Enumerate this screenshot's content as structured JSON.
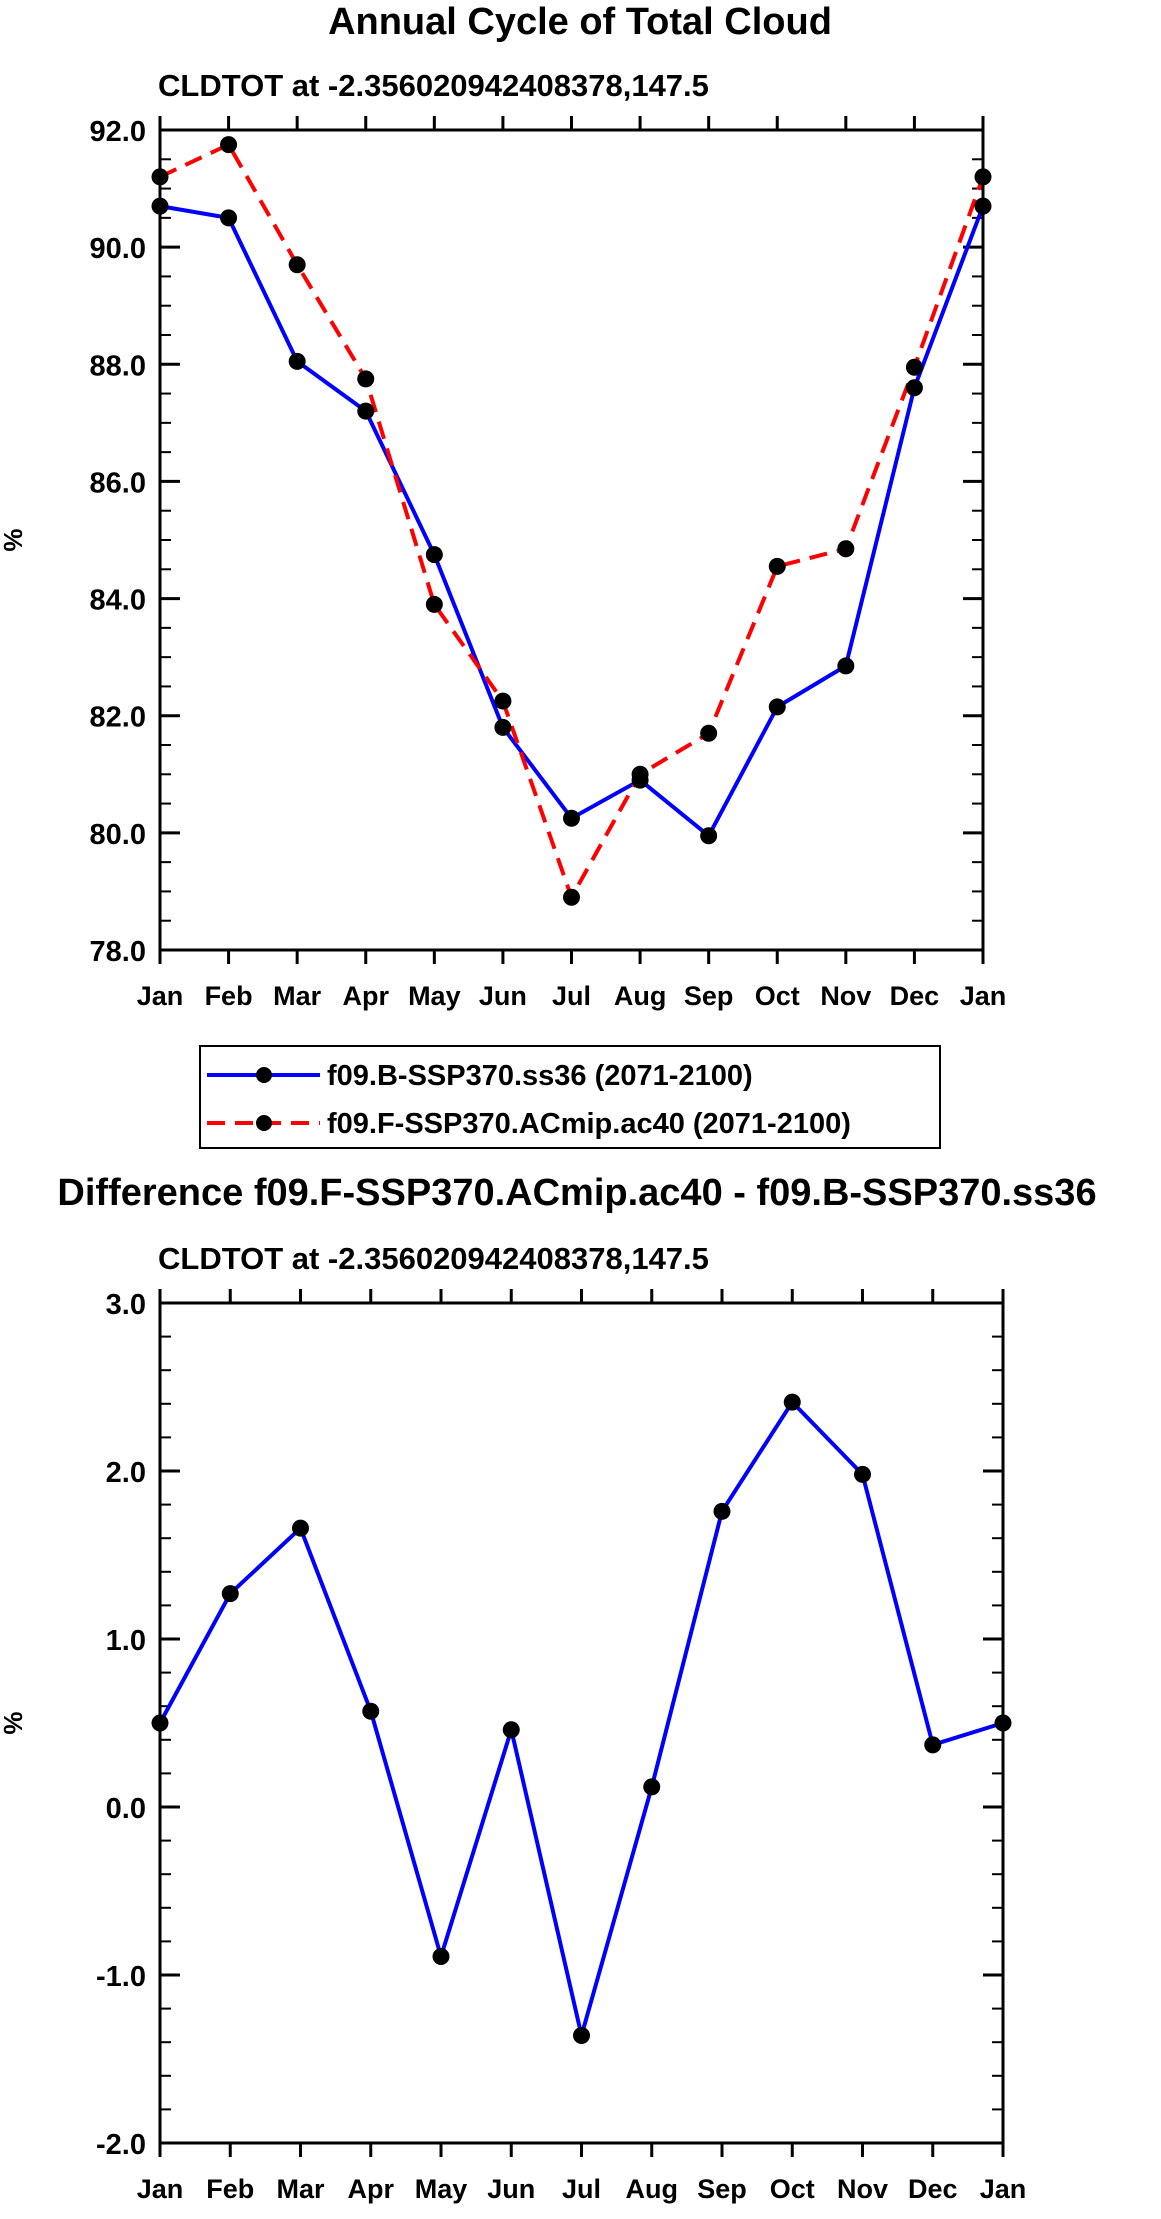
{
  "chart_data": [
    {
      "type": "line",
      "title": "Annual Cycle of Total Cloud",
      "subtitle": "CLDTOT at -2.356020942408378,147.5",
      "xlabel": "",
      "ylabel": "%",
      "categories": [
        "Jan",
        "Feb",
        "Mar",
        "Apr",
        "May",
        "Jun",
        "Jul",
        "Aug",
        "Sep",
        "Oct",
        "Nov",
        "Dec",
        "Jan"
      ],
      "ylim": [
        78,
        92
      ],
      "yticks": [
        78,
        80,
        82,
        84,
        86,
        88,
        90,
        92
      ],
      "ytick_labels": [
        "78.0",
        "80.0",
        "82.0",
        "84.0",
        "86.0",
        "88.0",
        "90.0",
        "92.0"
      ],
      "series": [
        {
          "name": "f09.B-SSP370.ss36 (2071-2100)",
          "color": "#0000ff",
          "dash": "solid",
          "values": [
            90.7,
            90.5,
            88.05,
            87.2,
            84.75,
            81.8,
            80.25,
            80.9,
            79.95,
            82.15,
            82.85,
            87.6,
            90.7
          ]
        },
        {
          "name": "f09.F-SSP370.ACmip.ac40 (2071-2100)",
          "color": "#ff0000",
          "dash": "dashed",
          "values": [
            91.2,
            91.75,
            89.7,
            87.75,
            83.9,
            82.25,
            78.9,
            81.0,
            81.7,
            84.55,
            84.85,
            87.95,
            91.2
          ]
        }
      ],
      "legend": [
        "f09.B-SSP370.ss36 (2071-2100)",
        "f09.F-SSP370.ACmip.ac40 (2071-2100)"
      ],
      "legend_position": "below"
    },
    {
      "type": "line",
      "title": "Difference f09.F-SSP370.ACmip.ac40 - f09.B-SSP370.ss36",
      "subtitle": "CLDTOT at -2.356020942408378,147.5",
      "xlabel": "",
      "ylabel": "%",
      "categories": [
        "Jan",
        "Feb",
        "Mar",
        "Apr",
        "May",
        "Jun",
        "Jul",
        "Aug",
        "Sep",
        "Oct",
        "Nov",
        "Dec",
        "Jan"
      ],
      "ylim": [
        -2,
        3
      ],
      "yticks": [
        -2,
        -1,
        0,
        1,
        2,
        3
      ],
      "ytick_labels": [
        "-2.0",
        "-1.0",
        "0.0",
        "1.0",
        "2.0",
        "3.0"
      ],
      "series": [
        {
          "name": "difference",
          "color": "#0000ff",
          "dash": "solid",
          "values": [
            0.5,
            1.27,
            1.66,
            0.57,
            -0.89,
            0.46,
            -1.36,
            0.12,
            1.76,
            2.41,
            1.98,
            0.37,
            0.5
          ]
        }
      ]
    }
  ]
}
